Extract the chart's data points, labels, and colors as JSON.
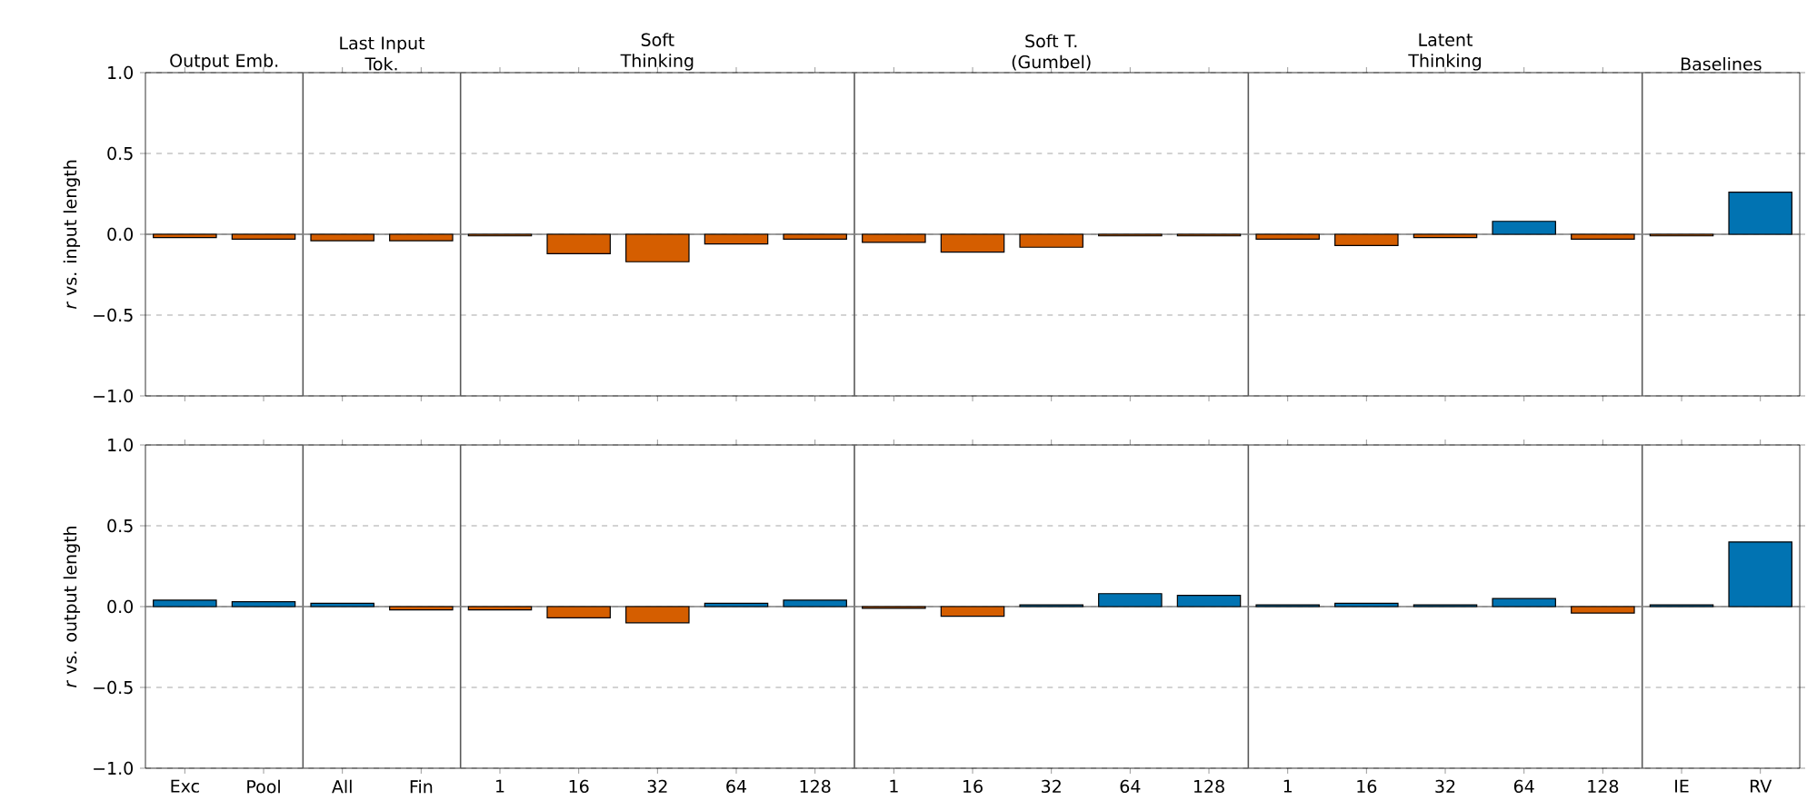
{
  "chart_data": [
    {
      "type": "bar",
      "ylabel": "*r* vs. input length",
      "tick_labels": "y",
      "grid": "y",
      "categories": [
        null,
        null,
        null,
        null,
        null,
        null,
        null,
        null,
        null,
        null,
        null,
        null,
        null,
        null,
        null,
        null,
        null,
        null,
        null,
        null,
        null
      ],
      "values": [
        -0.02,
        -0.03,
        -0.04,
        -0.04,
        -0.01,
        -0.12,
        -0.17,
        -0.06,
        -0.03,
        -0.05,
        -0.11,
        -0.08,
        -0.01,
        -0.01,
        -0.03,
        -0.07,
        -0.02,
        0.08,
        -0.03,
        -0.01,
        0.26
      ],
      "colors": [
        "#d55e00",
        "#d55e00",
        "#d55e00",
        "#d55e00",
        "#d55e00",
        "#d55e00",
        "#d55e00",
        "#d55e00",
        "#d55e00",
        "#d55e00",
        "#d55e00",
        "#d55e00",
        "#d55e00",
        "#d55e00",
        "#d55e00",
        "#d55e00",
        "#d55e00",
        "#0173b2",
        "#d55e00",
        "#d55e00",
        "#0173b2"
      ],
      "ylim": [
        -1,
        1
      ],
      "yticks": [
        {
          "value": -1,
          "label": "−1.0"
        },
        {
          "value": -0.5,
          "label": "−0.5"
        },
        {
          "value": 0,
          "label": "0.0"
        },
        {
          "value": 0.5,
          "label": "0.5"
        },
        {
          "value": 1,
          "label": "1.0"
        }
      ],
      "ref_lines": [
        {
          "axis": "y",
          "value": 0,
          "color": "#808080"
        }
      ],
      "annotations": [
        "Output Emb.",
        "Last Input Tok.",
        "Soft Thinking",
        "Soft T. (Gumbel)",
        "Latent Thinking",
        "Baselines"
      ]
    },
    {
      "type": "bar",
      "ylabel": "*r* vs. output length",
      "grid": "y",
      "categories": [
        "Exc",
        "Pool",
        "All",
        "Fin",
        "1",
        "16",
        "32",
        "64",
        "128",
        "1",
        "16",
        "32",
        "64",
        "128",
        "1",
        "16",
        "32",
        "64",
        "128",
        "IE",
        "RV"
      ],
      "values": [
        0.04,
        0.03,
        0.02,
        -0.02,
        -0.02,
        -0.07,
        -0.1,
        0.02,
        0.04,
        -0.01,
        -0.06,
        0.01,
        0.08,
        0.07,
        0.01,
        0.02,
        0.01,
        0.05,
        -0.04,
        0.01,
        0.4
      ],
      "colors": [
        "#0173b2",
        "#0173b2",
        "#0173b2",
        "#d55e00",
        "#d55e00",
        "#d55e00",
        "#d55e00",
        "#0173b2",
        "#0173b2",
        "#d55e00",
        "#d55e00",
        "#0173b2",
        "#0173b2",
        "#0173b2",
        "#0173b2",
        "#0173b2",
        "#0173b2",
        "#0173b2",
        "#d55e00",
        "#0173b2",
        "#0173b2"
      ],
      "ylim": [
        -1,
        1
      ],
      "yticks": [
        {
          "value": -1,
          "label": "−1.0"
        },
        {
          "value": -0.5,
          "label": "−0.5"
        },
        {
          "value": 0,
          "label": "0.0"
        },
        {
          "value": 0.5,
          "label": "0.5"
        },
        {
          "value": 1,
          "label": "1.0"
        }
      ],
      "ref_lines": [
        {
          "axis": "y",
          "value": 0,
          "color": "#808080"
        }
      ]
    }
  ]
}
